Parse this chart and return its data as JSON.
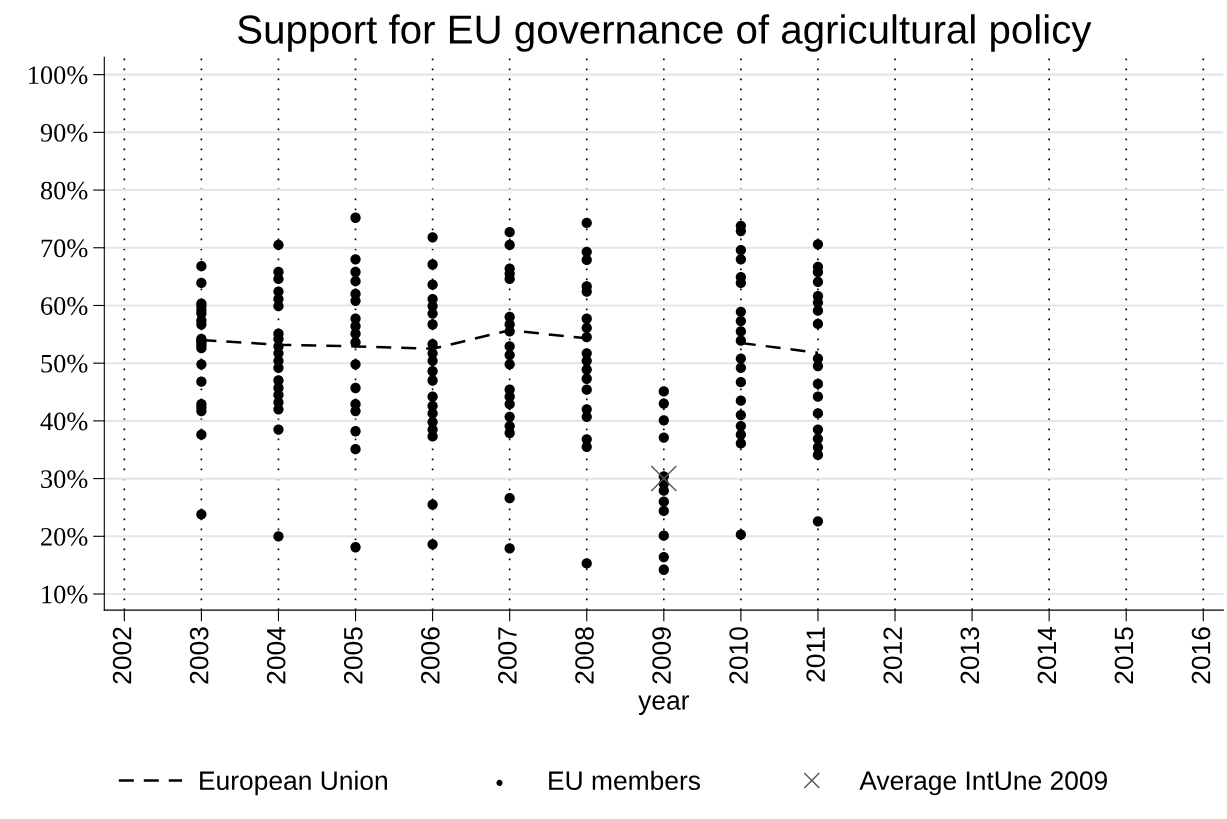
{
  "chart_data": {
    "type": "scatter",
    "title": "Support for EU governance of agricultural policy",
    "xlabel": "year",
    "xlim": [
      2001.74,
      2016.26
    ],
    "xticks": [
      2002,
      2003,
      2004,
      2005,
      2006,
      2007,
      2008,
      2009,
      2010,
      2011,
      2012,
      2013,
      2014,
      2015,
      2016
    ],
    "ylim": [
      7.2,
      103
    ],
    "yticks": [
      {
        "value": 10,
        "label": "10%"
      },
      {
        "value": 20,
        "label": "20%"
      },
      {
        "value": 30,
        "label": "30%"
      },
      {
        "value": 40,
        "label": "40%"
      },
      {
        "value": 50,
        "label": "50%"
      },
      {
        "value": 60,
        "label": "60%"
      },
      {
        "value": 70,
        "label": "70%"
      },
      {
        "value": 80,
        "label": "80%"
      },
      {
        "value": 90,
        "label": "90%"
      },
      {
        "value": 100,
        "label": "100%"
      }
    ],
    "grid": true,
    "legend": "bottom",
    "series": [
      {
        "name": "European Union",
        "type": "line",
        "line_style": "dashed",
        "marker": "none",
        "color": "#000000",
        "x": [
          2003,
          2004,
          2005,
          2006,
          2007,
          2008,
          2009,
          2010,
          2011
        ],
        "values": [
          54.0,
          53.2,
          52.9,
          52.5,
          55.7,
          54.3,
          null,
          53.5,
          51.8
        ]
      },
      {
        "name": "EU members",
        "marker": "circle",
        "color": "#000000",
        "x": [
          2003,
          2003,
          2003,
          2003,
          2003,
          2003,
          2003,
          2003,
          2003,
          2003,
          2003,
          2003,
          2003,
          2003,
          2003,
          2003,
          2003,
          2003,
          2003,
          2003,
          2004,
          2004,
          2004,
          2004,
          2004,
          2004,
          2004,
          2004,
          2004,
          2004,
          2004,
          2004,
          2004,
          2004,
          2004,
          2004,
          2004,
          2004,
          2004,
          2005,
          2005,
          2005,
          2005,
          2005,
          2005,
          2005,
          2005,
          2005,
          2005,
          2005,
          2005,
          2005,
          2005,
          2005,
          2005,
          2005,
          2006,
          2006,
          2006,
          2006,
          2006,
          2006,
          2006,
          2006,
          2006,
          2006,
          2006,
          2006,
          2006,
          2006,
          2006,
          2006,
          2006,
          2006,
          2006,
          2006,
          2007,
          2007,
          2007,
          2007,
          2007,
          2007,
          2007,
          2007,
          2007,
          2007,
          2007,
          2007,
          2007,
          2007,
          2007,
          2007,
          2007,
          2007,
          2007,
          2008,
          2008,
          2008,
          2008,
          2008,
          2008,
          2008,
          2008,
          2008,
          2008,
          2008,
          2008,
          2008,
          2008,
          2008,
          2008,
          2008,
          2008,
          2009,
          2009,
          2009,
          2009,
          2009,
          2009,
          2009,
          2009,
          2009,
          2009,
          2009,
          2009,
          2010,
          2010,
          2010,
          2010,
          2010,
          2010,
          2010,
          2010,
          2010,
          2010,
          2010,
          2010,
          2010,
          2010,
          2010,
          2010,
          2010,
          2010,
          2010,
          2011,
          2011,
          2011,
          2011,
          2011,
          2011,
          2011,
          2011,
          2011,
          2011,
          2011,
          2011,
          2011,
          2011,
          2011,
          2011,
          2011,
          2011
        ],
        "values": [
          66.8,
          63.9,
          59.9,
          59.2,
          58.6,
          57.4,
          56.7,
          54.2,
          53.9,
          53.6,
          52.6,
          49.8,
          46.8,
          42.9,
          41.7,
          37.6,
          23.8,
          42.3,
          60.3,
          53.1,
          70.5,
          65.8,
          64.6,
          62.4,
          61.1,
          59.9,
          55.1,
          54.2,
          52.9,
          51.7,
          50.4,
          49.2,
          47.0,
          45.7,
          44.5,
          43.2,
          42.0,
          38.5,
          20.0,
          75.2,
          68.0,
          65.8,
          64.2,
          62.0,
          60.8,
          57.7,
          56.4,
          55.1,
          53.6,
          49.8,
          45.7,
          42.9,
          41.7,
          38.2,
          35.1,
          18.1,
          71.8,
          67.1,
          63.6,
          61.1,
          59.9,
          58.6,
          56.7,
          53.3,
          51.7,
          50.4,
          48.6,
          47.0,
          44.2,
          42.6,
          41.3,
          39.8,
          38.5,
          37.3,
          25.5,
          18.6,
          72.7,
          70.5,
          66.4,
          65.5,
          64.6,
          58.0,
          56.7,
          55.5,
          52.9,
          51.4,
          49.8,
          45.4,
          44.2,
          42.9,
          40.7,
          39.1,
          37.9,
          26.6,
          17.9,
          74.3,
          69.3,
          67.9,
          63.3,
          62.4,
          57.7,
          56.1,
          54.5,
          51.7,
          50.4,
          48.9,
          47.3,
          45.4,
          42.0,
          40.7,
          36.8,
          35.5,
          15.3,
          45.1,
          43.0,
          40.1,
          37.1,
          30.4,
          29.1,
          27.9,
          26.0,
          24.4,
          20.1,
          16.4,
          14.2,
          73.8,
          72.9,
          69.6,
          68.0,
          64.9,
          63.9,
          58.9,
          57.3,
          55.5,
          53.9,
          50.8,
          49.2,
          46.7,
          43.5,
          41.0,
          39.1,
          37.6,
          36.1,
          20.3,
          70.6,
          66.7,
          65.8,
          64.1,
          61.6,
          60.5,
          59.1,
          56.8,
          50.8,
          49.5,
          46.4,
          44.2,
          41.3,
          38.5,
          36.9,
          35.4,
          34.1,
          22.6
        ]
      },
      {
        "name": "Average IntUne 2009",
        "marker": "cross",
        "color": "#555555",
        "x": [
          2009
        ],
        "values": [
          30.0
        ]
      }
    ]
  }
}
